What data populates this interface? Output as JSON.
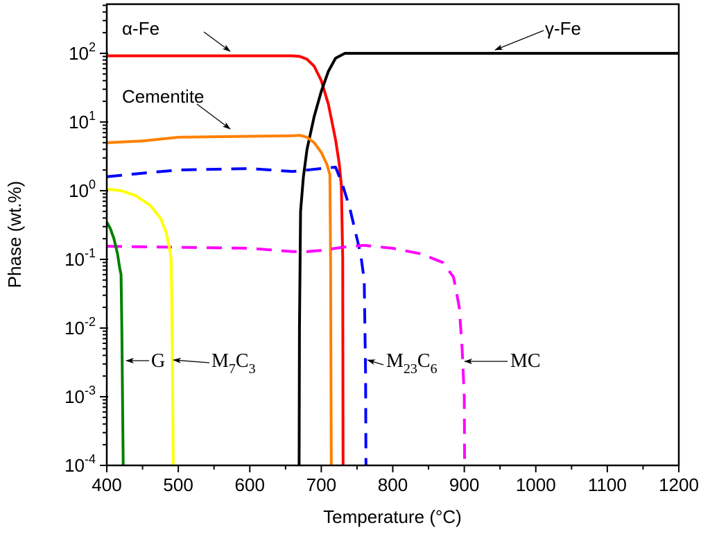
{
  "chart_data": {
    "type": "line",
    "title": "",
    "xlabel": "Temperature (°C)",
    "ylabel": "Phase (wt.%)",
    "xlim": [
      400,
      1200
    ],
    "ylim": [
      0.0001,
      520
    ],
    "yscale": "log",
    "grid": false,
    "x_ticks": [
      "400",
      "500",
      "600",
      "700",
      "800",
      "900",
      "1000",
      "1100",
      "1200"
    ],
    "y_ticks": [
      {
        "base": "10",
        "exp": "2"
      },
      {
        "base": "10",
        "exp": "1"
      },
      {
        "base": "10",
        "exp": "0"
      },
      {
        "base": "10",
        "exp": "-1"
      },
      {
        "base": "10",
        "exp": "-2"
      },
      {
        "base": "10",
        "exp": "-3"
      },
      {
        "base": "10",
        "exp": "-4"
      }
    ],
    "series": [
      {
        "name": "α-Fe",
        "color": "#ff0000",
        "dash": false,
        "x": [
          400,
          660,
          670,
          680,
          690,
          700,
          710,
          720,
          725,
          728,
          730,
          730.5
        ],
        "y": [
          92,
          92,
          90,
          82,
          65,
          40,
          18,
          5.5,
          2.5,
          1.2,
          0.1,
          0.0001
        ]
      },
      {
        "name": "γ-Fe",
        "color": "#000000",
        "dash": false,
        "x": [
          669,
          669.5,
          671,
          675,
          680,
          690,
          700,
          710,
          720,
          733,
          1200
        ],
        "y": [
          0.0001,
          0.01,
          0.5,
          1.6,
          4,
          12,
          28,
          55,
          85,
          100,
          100
        ]
      },
      {
        "name": "Cementite",
        "color": "#ff8000",
        "dash": false,
        "x": [
          400,
          450,
          500,
          600,
          660,
          670,
          680,
          690,
          700,
          708,
          712,
          713,
          714
        ],
        "y": [
          5.0,
          5.3,
          6.0,
          6.2,
          6.3,
          6.4,
          6.0,
          5.0,
          3.6,
          2.4,
          1.7,
          0.1,
          0.0001
        ]
      },
      {
        "name": "M23C6",
        "color": "#0000ff",
        "dash": true,
        "x": [
          400,
          450,
          500,
          600,
          660,
          700,
          720,
          730,
          740,
          750,
          755,
          760,
          762,
          762.5
        ],
        "y": [
          1.6,
          1.8,
          2.0,
          2.1,
          1.9,
          2.1,
          2.2,
          1.2,
          0.55,
          0.2,
          0.12,
          0.05,
          0.002,
          0.0001
        ]
      },
      {
        "name": "MC",
        "color": "#ff00ff",
        "dash": true,
        "x": [
          400,
          500,
          600,
          660,
          680,
          700,
          730,
          760,
          800,
          840,
          870,
          885,
          893,
          897,
          900,
          900.5
        ],
        "y": [
          0.155,
          0.15,
          0.145,
          0.13,
          0.13,
          0.135,
          0.15,
          0.16,
          0.145,
          0.12,
          0.09,
          0.055,
          0.02,
          0.005,
          0.001,
          0.0001
        ]
      },
      {
        "name": "M7C3",
        "color": "#ffff00",
        "dash": false,
        "x": [
          400,
          420,
          440,
          460,
          475,
          483,
          488,
          490,
          491,
          492,
          493
        ],
        "y": [
          1.05,
          1.0,
          0.85,
          0.62,
          0.4,
          0.25,
          0.14,
          0.1,
          0.02,
          0.002,
          0.0001
        ]
      },
      {
        "name": "G",
        "color": "#008000",
        "dash": false,
        "x": [
          400,
          405,
          410,
          415,
          418,
          420,
          421,
          422,
          423
        ],
        "y": [
          0.35,
          0.28,
          0.2,
          0.12,
          0.075,
          0.06,
          0.01,
          0.001,
          0.0001
        ]
      }
    ],
    "annotations": [
      {
        "text": "α-Fe",
        "series": "α-Fe"
      },
      {
        "text": "γ-Fe",
        "series": "γ-Fe"
      },
      {
        "text": "Cementite",
        "series": "Cementite"
      },
      {
        "text": "G",
        "series": "G"
      },
      {
        "text": "M",
        "sub1": "7",
        "mid": "C",
        "sub2": "3",
        "series": "M7C3"
      },
      {
        "text": "M",
        "sub1": "23",
        "mid": "C",
        "sub2": "6",
        "series": "M23C6"
      },
      {
        "text": "MC",
        "series": "MC"
      }
    ]
  }
}
